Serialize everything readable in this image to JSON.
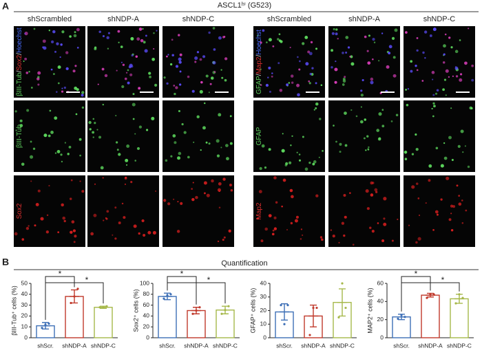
{
  "panel_a": {
    "label": "A",
    "title": "ASCL1ʰⁱ (G523)",
    "columns_left": [
      "shScrambled",
      "shNDP-A",
      "shNDP-C"
    ],
    "columns_right": [
      "shScrambled",
      "shNDP-A",
      "shNDP-C"
    ],
    "rows_left": [
      [
        "βIII-Tub",
        "/",
        "Sox2",
        "/",
        "Hoechst"
      ],
      [
        "βIII-Tub"
      ],
      [
        "Sox2"
      ]
    ],
    "rows_right": [
      [
        "GFAP",
        "/",
        "Map2",
        "/",
        "Hoechst"
      ],
      [
        "GFAP"
      ],
      [
        "Map2"
      ]
    ]
  },
  "panel_b": {
    "label": "B",
    "title": "Quantification"
  },
  "chart_data": [
    {
      "type": "bar",
      "y_label": "βIII-Tub⁺ cells (%)",
      "categories": [
        "shScr.",
        "shNDP-A",
        "shNDP-C"
      ],
      "values": [
        11,
        38,
        28
      ],
      "errors": [
        3,
        6,
        1
      ],
      "points": [
        [
          9,
          12,
          13
        ],
        [
          32,
          38,
          45
        ],
        [
          28,
          28,
          29
        ]
      ],
      "colors": [
        "#3d6fb6",
        "#c0392b",
        "#a6b84a"
      ],
      "ylim": [
        0,
        50
      ],
      "yticks": [
        0,
        10,
        20,
        30,
        40,
        50
      ],
      "annotations": [
        "*",
        "*"
      ]
    },
    {
      "type": "bar",
      "y_label": "Sox2⁺ cells (%)",
      "categories": [
        "shScr.",
        "shNDP-A",
        "shNDP-C"
      ],
      "values": [
        76,
        50,
        51
      ],
      "errors": [
        6,
        6,
        7
      ],
      "points": [
        [
          72,
          78,
          80
        ],
        [
          44,
          50,
          56
        ],
        [
          44,
          51,
          58
        ]
      ],
      "colors": [
        "#3d6fb6",
        "#c0392b",
        "#a6b84a"
      ],
      "ylim": [
        0,
        100
      ],
      "yticks": [
        0,
        20,
        40,
        60,
        80,
        100
      ],
      "annotations": [
        "*",
        "*"
      ]
    },
    {
      "type": "bar",
      "y_label": "GFAP⁺ cells (%)",
      "categories": [
        "shScr.",
        "shNDP-A",
        "shNDP-C"
      ],
      "values": [
        19,
        16,
        26
      ],
      "errors": [
        6,
        8,
        10
      ],
      "points": [
        [
          24,
          10,
          24
        ],
        [
          2,
          22,
          22
        ],
        [
          15,
          40,
          22
        ]
      ],
      "colors": [
        "#3d6fb6",
        "#c0392b",
        "#a6b84a"
      ],
      "ylim": [
        0,
        40
      ],
      "yticks": [
        0,
        10,
        20,
        30,
        40
      ]
    },
    {
      "type": "bar",
      "y_label": "MAP2⁺ cells (%)",
      "categories": [
        "shScr.",
        "shNDP-A",
        "shNDP-C"
      ],
      "values": [
        23,
        47,
        43
      ],
      "errors": [
        3,
        2,
        5
      ],
      "points": [
        [
          21,
          25,
          23
        ],
        [
          44,
          48,
          48
        ],
        [
          38,
          48,
          44
        ]
      ],
      "colors": [
        "#3d6fb6",
        "#c0392b",
        "#a6b84a"
      ],
      "ylim": [
        0,
        60
      ],
      "yticks": [
        0,
        20,
        40,
        60
      ],
      "annotations": [
        "*",
        "*"
      ]
    }
  ]
}
